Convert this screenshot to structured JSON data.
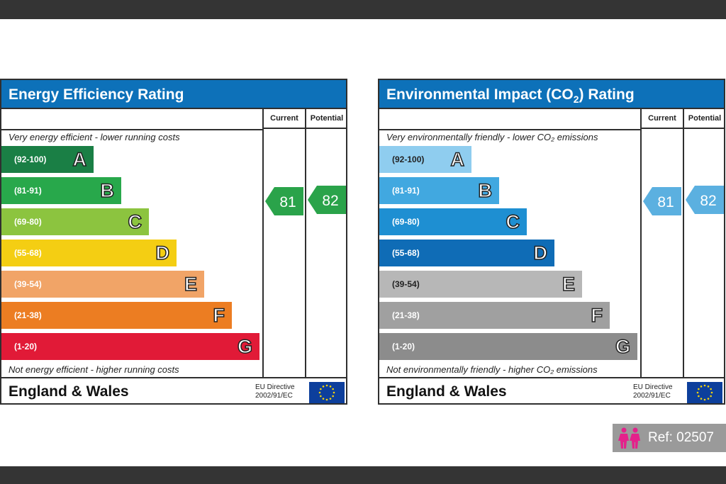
{
  "charts": [
    {
      "title_main": "Energy Efficiency Rating",
      "title_sub": "",
      "title_tail": "",
      "col_current": "Current",
      "col_potential": "Potential",
      "note_top": "Very energy efficient - lower running costs",
      "note_bottom": "Not energy efficient - higher running costs",
      "footer_region": "England & Wales",
      "eu_directive_line1": "EU Directive",
      "eu_directive_line2": "2002/91/EC",
      "current_value": "81",
      "potential_value": "82",
      "arrow_color": "#2aa34a"
    },
    {
      "title_main": "Environmental Impact (CO",
      "title_sub": "2",
      "title_tail": ") Rating",
      "col_current": "Current",
      "col_potential": "Potential",
      "note_top": "Very environmentally friendly - lower CO₂ emissions",
      "note_bottom": "Not environmentally friendly - higher CO₂ emissions",
      "footer_region": "England & Wales",
      "eu_directive_line1": "EU Directive",
      "eu_directive_line2": "2002/91/EC",
      "current_value": "81",
      "potential_value": "82",
      "arrow_color": "#5bb0e0"
    }
  ],
  "chart_data": [
    {
      "type": "bar",
      "title": "Energy Efficiency Rating",
      "categories": [
        "A",
        "B",
        "C",
        "D",
        "E",
        "F",
        "G"
      ],
      "ranges": [
        "(92-100)",
        "(81-91)",
        "(69-80)",
        "(55-68)",
        "(39-54)",
        "(21-38)",
        "(1-20)"
      ],
      "colors": [
        "#1a7f45",
        "#28a84b",
        "#8cc43f",
        "#f4ce13",
        "#f1a467",
        "#ec7d22",
        "#e11a37"
      ],
      "current": 81,
      "potential": 82
    },
    {
      "type": "bar",
      "title": "Environmental Impact (CO2) Rating",
      "categories": [
        "A",
        "B",
        "C",
        "D",
        "E",
        "F",
        "G"
      ],
      "ranges": [
        "(92-100)",
        "(81-91)",
        "(69-80)",
        "(55-68)",
        "(39-54)",
        "(21-38)",
        "(1-20)"
      ],
      "colors": [
        "#8fcdef",
        "#41a8e0",
        "#1e8fd2",
        "#0f6cb6",
        "#b7b7b7",
        "#a0a0a0",
        "#8c8c8c"
      ],
      "current": 81,
      "potential": 82
    }
  ],
  "ref": {
    "label": "Ref: 02507",
    "icon": "people-icon",
    "icon_color": "#e4218b"
  },
  "colors": {
    "frame": "#343434",
    "title_bar": "#0d71b9"
  }
}
